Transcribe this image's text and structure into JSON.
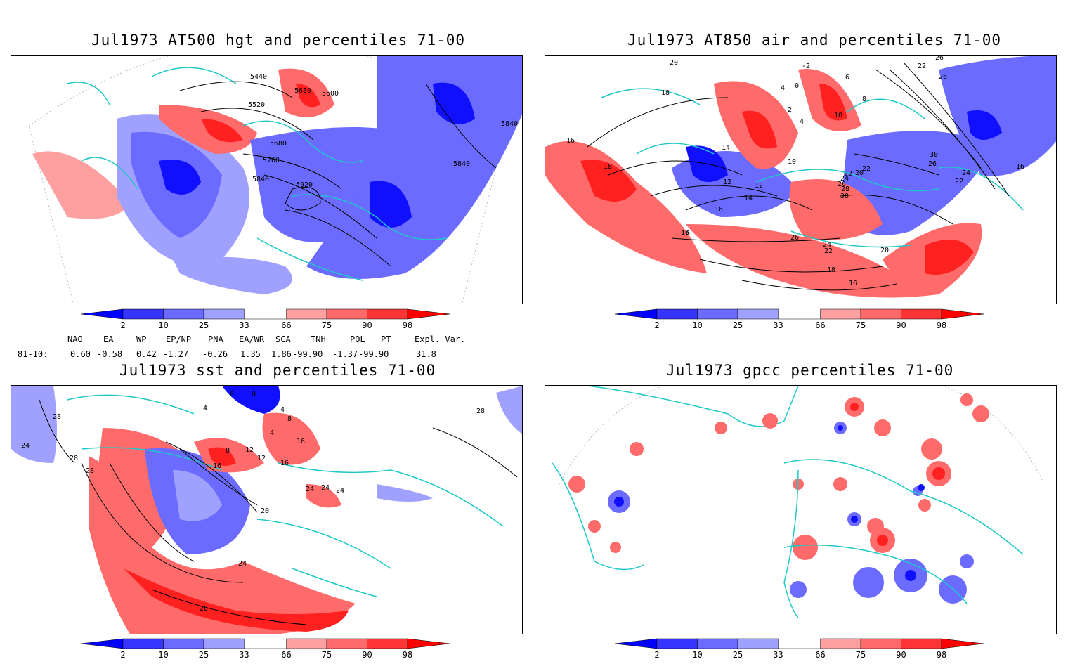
{
  "panels": [
    {
      "id": "hgt",
      "title": "Jul1973 AT500 hgt and percentiles 71-00",
      "contour_labels": [
        "5440",
        "5520",
        "5680",
        "5600",
        "5680",
        "5760",
        "5840",
        "5920",
        "5840",
        "5840"
      ]
    },
    {
      "id": "air",
      "title": "Jul1973 AT850 air and percentiles 71-00",
      "contour_labels": [
        "20",
        "18",
        "16",
        "18",
        "14",
        "12",
        "12",
        "14",
        "16",
        "16",
        "10",
        "-2",
        "4",
        "0",
        "2",
        "4",
        "6",
        "8",
        "10",
        "26",
        "22",
        "22",
        "26",
        "30",
        "26",
        "24",
        "22",
        "20",
        "22",
        "24",
        "28",
        "30",
        "26",
        "26",
        "24",
        "22",
        "20",
        "18",
        "16",
        "16",
        "16"
      ]
    },
    {
      "id": "sst",
      "title": "Jul1973 sst and percentiles 71-00",
      "contour_labels": [
        "28",
        "24",
        "28",
        "28",
        "0",
        "0",
        "4",
        "4",
        "4",
        "8",
        "8",
        "12",
        "16",
        "16",
        "12",
        "16",
        "20",
        "24",
        "24",
        "24",
        "24",
        "28",
        "28"
      ]
    },
    {
      "id": "gpcc",
      "title": "Jul1973 gpcc percentiles 71-00",
      "contour_labels": []
    }
  ],
  "colorbar": {
    "labels": [
      "2",
      "10",
      "25",
      "33",
      "66",
      "75",
      "90",
      "98"
    ],
    "colors": [
      "#0000ff",
      "#3535ff",
      "#6b6bff",
      "#a0a0ff",
      "#ffa0a0",
      "#ff6b6b",
      "#ff3535",
      "#ff0000"
    ]
  },
  "indices": {
    "header": [
      "NAO",
      "EA",
      "WP",
      "EP/NP",
      "PNA",
      "EA/WR",
      "SCA",
      "TNH",
      "POL",
      "PT",
      "Expl. Var."
    ],
    "row_label": "81-10:",
    "values": [
      "0.60",
      "-0.58",
      "0.42",
      "-1.27",
      "-0.26",
      "1.35",
      "1.86",
      "-99.90",
      "-1.37",
      "-99.90",
      "31.8"
    ]
  },
  "map_colors": {
    "coast": "#1ec8c8",
    "blue_mid": "#6b6bff",
    "blue_light": "#a0a0ff",
    "blue_dark": "#1010ff",
    "red_light": "#ffa0a0",
    "red_mid": "#ff6b6b",
    "red_dark": "#ff2020"
  }
}
